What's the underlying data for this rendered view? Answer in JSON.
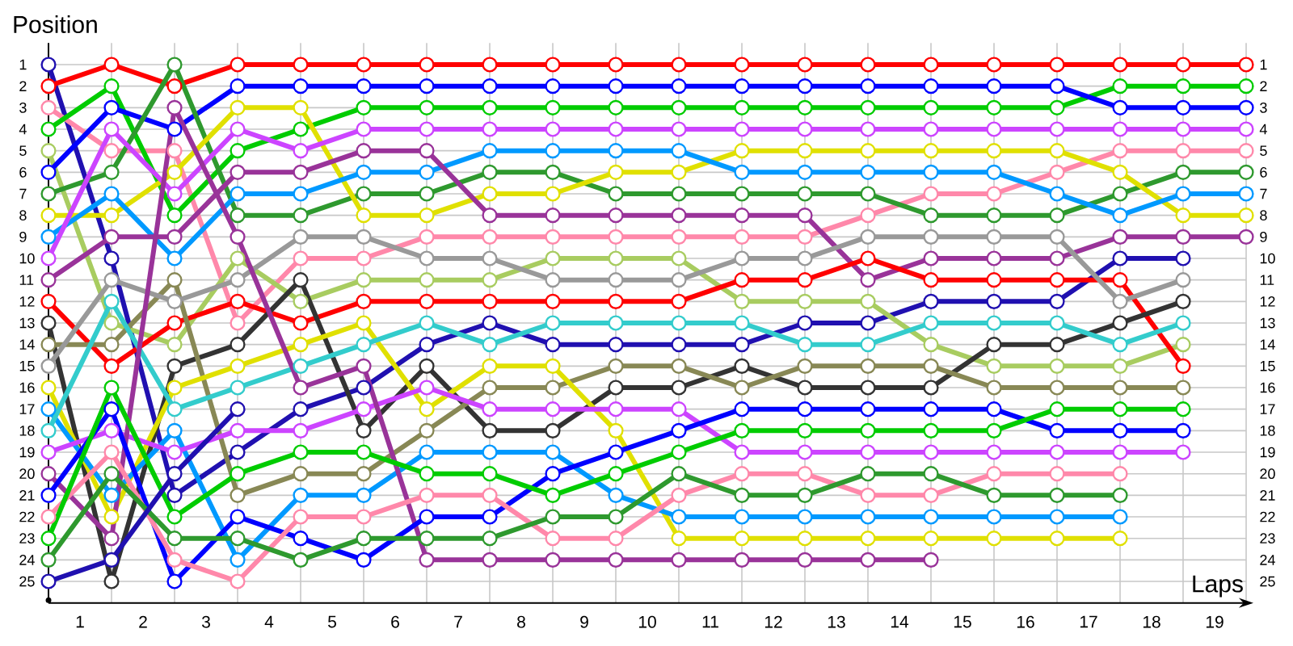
{
  "chart_data": {
    "type": "line",
    "xlabel": "Laps",
    "ylabel": "Position",
    "grid": true,
    "marker": "circle",
    "x": [
      0,
      1,
      2,
      3,
      4,
      5,
      6,
      7,
      8,
      9,
      10,
      11,
      12,
      13,
      14,
      15,
      16,
      17,
      18,
      19
    ],
    "xlim": [
      0,
      19
    ],
    "xticks": [
      {
        "value": 0.5,
        "label": "1"
      },
      {
        "value": 1.5,
        "label": "2"
      },
      {
        "value": 2.5,
        "label": "3"
      },
      {
        "value": 3.5,
        "label": "4"
      },
      {
        "value": 4.5,
        "label": "5"
      },
      {
        "value": 5.5,
        "label": "6"
      },
      {
        "value": 6.5,
        "label": "7"
      },
      {
        "value": 7.5,
        "label": "8"
      },
      {
        "value": 8.5,
        "label": "9"
      },
      {
        "value": 9.5,
        "label": "10"
      },
      {
        "value": 10.5,
        "label": "11"
      },
      {
        "value": 11.5,
        "label": "12"
      },
      {
        "value": 12.5,
        "label": "13"
      },
      {
        "value": 13.5,
        "label": "14"
      },
      {
        "value": 14.5,
        "label": "15"
      },
      {
        "value": 15.5,
        "label": "16"
      },
      {
        "value": 16.5,
        "label": "17"
      },
      {
        "value": 17.5,
        "label": "18"
      },
      {
        "value": 18.5,
        "label": "19"
      }
    ],
    "ylim": [
      26,
      0
    ],
    "yticks": [
      1,
      2,
      3,
      4,
      5,
      6,
      7,
      8,
      9,
      10,
      11,
      12,
      13,
      14,
      15,
      16,
      17,
      18,
      19,
      20,
      21,
      22,
      23,
      24,
      25
    ],
    "y2lim": [
      26,
      0
    ],
    "y2ticks": [
      1,
      2,
      3,
      4,
      5,
      6,
      7,
      8,
      9,
      10,
      11,
      12,
      13,
      14,
      15,
      16,
      17,
      18,
      19,
      20,
      21,
      22,
      23,
      24,
      25
    ],
    "series": [
      {
        "color": "#2010b0",
        "values": [
          1,
          10,
          21,
          19,
          17,
          16,
          14,
          13,
          14,
          14,
          14,
          14,
          13,
          13,
          12,
          12,
          12,
          10,
          10,
          null
        ]
      },
      {
        "color": "#ff0000",
        "values": [
          2,
          1,
          2,
          1,
          1,
          1,
          1,
          1,
          1,
          1,
          1,
          1,
          1,
          1,
          1,
          1,
          1,
          1,
          1,
          1
        ]
      },
      {
        "color": "#ff88aa",
        "values": [
          3,
          5,
          5,
          13,
          10,
          10,
          9,
          9,
          9,
          9,
          9,
          9,
          9,
          8,
          7,
          7,
          6,
          5,
          5,
          5
        ]
      },
      {
        "color": "#00cc00",
        "values": [
          4,
          2,
          8,
          5,
          4,
          3,
          3,
          3,
          3,
          3,
          3,
          3,
          3,
          3,
          3,
          3,
          3,
          2,
          2,
          2
        ]
      },
      {
        "color": "#a8cc60",
        "values": [
          5,
          13,
          14,
          10,
          12,
          11,
          11,
          11,
          10,
          10,
          10,
          12,
          12,
          12,
          14,
          15,
          15,
          15,
          14,
          null
        ]
      },
      {
        "color": "#0000ff",
        "values": [
          6,
          3,
          4,
          2,
          2,
          2,
          2,
          2,
          2,
          2,
          2,
          2,
          2,
          2,
          2,
          2,
          2,
          3,
          3,
          3
        ]
      },
      {
        "color": "#2e992e",
        "values": [
          7,
          6,
          1,
          8,
          8,
          7,
          7,
          6,
          6,
          7,
          7,
          7,
          7,
          7,
          8,
          8,
          8,
          7,
          6,
          6
        ]
      },
      {
        "color": "#e0e000",
        "values": [
          8,
          8,
          6,
          3,
          3,
          8,
          8,
          7,
          7,
          6,
          6,
          5,
          5,
          5,
          5,
          5,
          5,
          6,
          8,
          8
        ]
      },
      {
        "color": "#0099ff",
        "values": [
          9,
          7,
          10,
          7,
          7,
          6,
          6,
          5,
          5,
          5,
          5,
          6,
          6,
          6,
          6,
          6,
          7,
          8,
          7,
          7
        ]
      },
      {
        "color": "#cc44ff",
        "values": [
          10,
          4,
          7,
          4,
          5,
          4,
          4,
          4,
          4,
          4,
          4,
          4,
          4,
          4,
          4,
          4,
          4,
          4,
          4,
          4
        ]
      },
      {
        "color": "#993399",
        "values": [
          11,
          9,
          9,
          6,
          6,
          5,
          5,
          8,
          8,
          8,
          8,
          8,
          8,
          11,
          10,
          10,
          10,
          9,
          9,
          9
        ]
      },
      {
        "color": "#ff0000",
        "values": [
          12,
          15,
          13,
          12,
          13,
          12,
          12,
          12,
          12,
          12,
          12,
          11,
          11,
          10,
          11,
          11,
          11,
          11,
          15,
          null
        ]
      },
      {
        "color": "#333333",
        "values": [
          13,
          25,
          15,
          14,
          11,
          18,
          15,
          18,
          18,
          16,
          16,
          15,
          16,
          16,
          16,
          14,
          14,
          13,
          12,
          null
        ]
      },
      {
        "color": "#888855",
        "values": [
          14,
          14,
          11,
          21,
          20,
          20,
          18,
          16,
          16,
          15,
          15,
          16,
          15,
          15,
          15,
          16,
          16,
          16,
          16,
          null
        ]
      },
      {
        "color": "#999999",
        "values": [
          15,
          11,
          12,
          11,
          9,
          9,
          10,
          10,
          11,
          11,
          11,
          10,
          10,
          9,
          9,
          9,
          9,
          12,
          11,
          null
        ]
      },
      {
        "color": "#e0e000",
        "values": [
          16,
          22,
          16,
          15,
          14,
          13,
          17,
          15,
          15,
          18,
          23,
          23,
          23,
          23,
          23,
          23,
          23,
          23,
          null,
          null
        ]
      },
      {
        "color": "#0099ff",
        "values": [
          17,
          21,
          18,
          24,
          21,
          21,
          19,
          19,
          19,
          21,
          22,
          22,
          22,
          22,
          22,
          22,
          22,
          22,
          null,
          null
        ]
      },
      {
        "color": "#33cccc",
        "values": [
          18,
          12,
          17,
          16,
          15,
          14,
          13,
          14,
          13,
          13,
          13,
          13,
          14,
          14,
          13,
          13,
          13,
          14,
          13,
          null
        ]
      },
      {
        "color": "#cc44ff",
        "values": [
          19,
          18,
          19,
          18,
          18,
          17,
          16,
          17,
          17,
          17,
          17,
          19,
          19,
          19,
          19,
          19,
          19,
          19,
          19,
          null
        ]
      },
      {
        "color": "#993399",
        "values": [
          20,
          23,
          3,
          9,
          16,
          15,
          24,
          24,
          24,
          24,
          24,
          24,
          24,
          24,
          24,
          null,
          null,
          null,
          null,
          null
        ]
      },
      {
        "color": "#0000ff",
        "values": [
          21,
          17,
          25,
          22,
          23,
          24,
          22,
          22,
          20,
          19,
          18,
          17,
          17,
          17,
          17,
          17,
          18,
          18,
          18,
          null
        ]
      },
      {
        "color": "#ff88aa",
        "values": [
          22,
          19,
          24,
          25,
          22,
          22,
          21,
          21,
          23,
          23,
          21,
          20,
          20,
          21,
          21,
          20,
          20,
          20,
          null,
          null
        ]
      },
      {
        "color": "#00cc00",
        "values": [
          23,
          16,
          22,
          20,
          19,
          19,
          20,
          20,
          21,
          20,
          19,
          18,
          18,
          18,
          18,
          18,
          17,
          17,
          17,
          null
        ]
      },
      {
        "color": "#2e992e",
        "values": [
          24,
          20,
          23,
          23,
          24,
          23,
          23,
          23,
          22,
          22,
          20,
          21,
          21,
          20,
          20,
          21,
          21,
          21,
          null,
          null
        ]
      },
      {
        "color": "#2010b0",
        "values": [
          25,
          24,
          20,
          17,
          null,
          null,
          null,
          null,
          null,
          null,
          null,
          null,
          null,
          null,
          null,
          null,
          null,
          null,
          null,
          null
        ]
      }
    ]
  }
}
